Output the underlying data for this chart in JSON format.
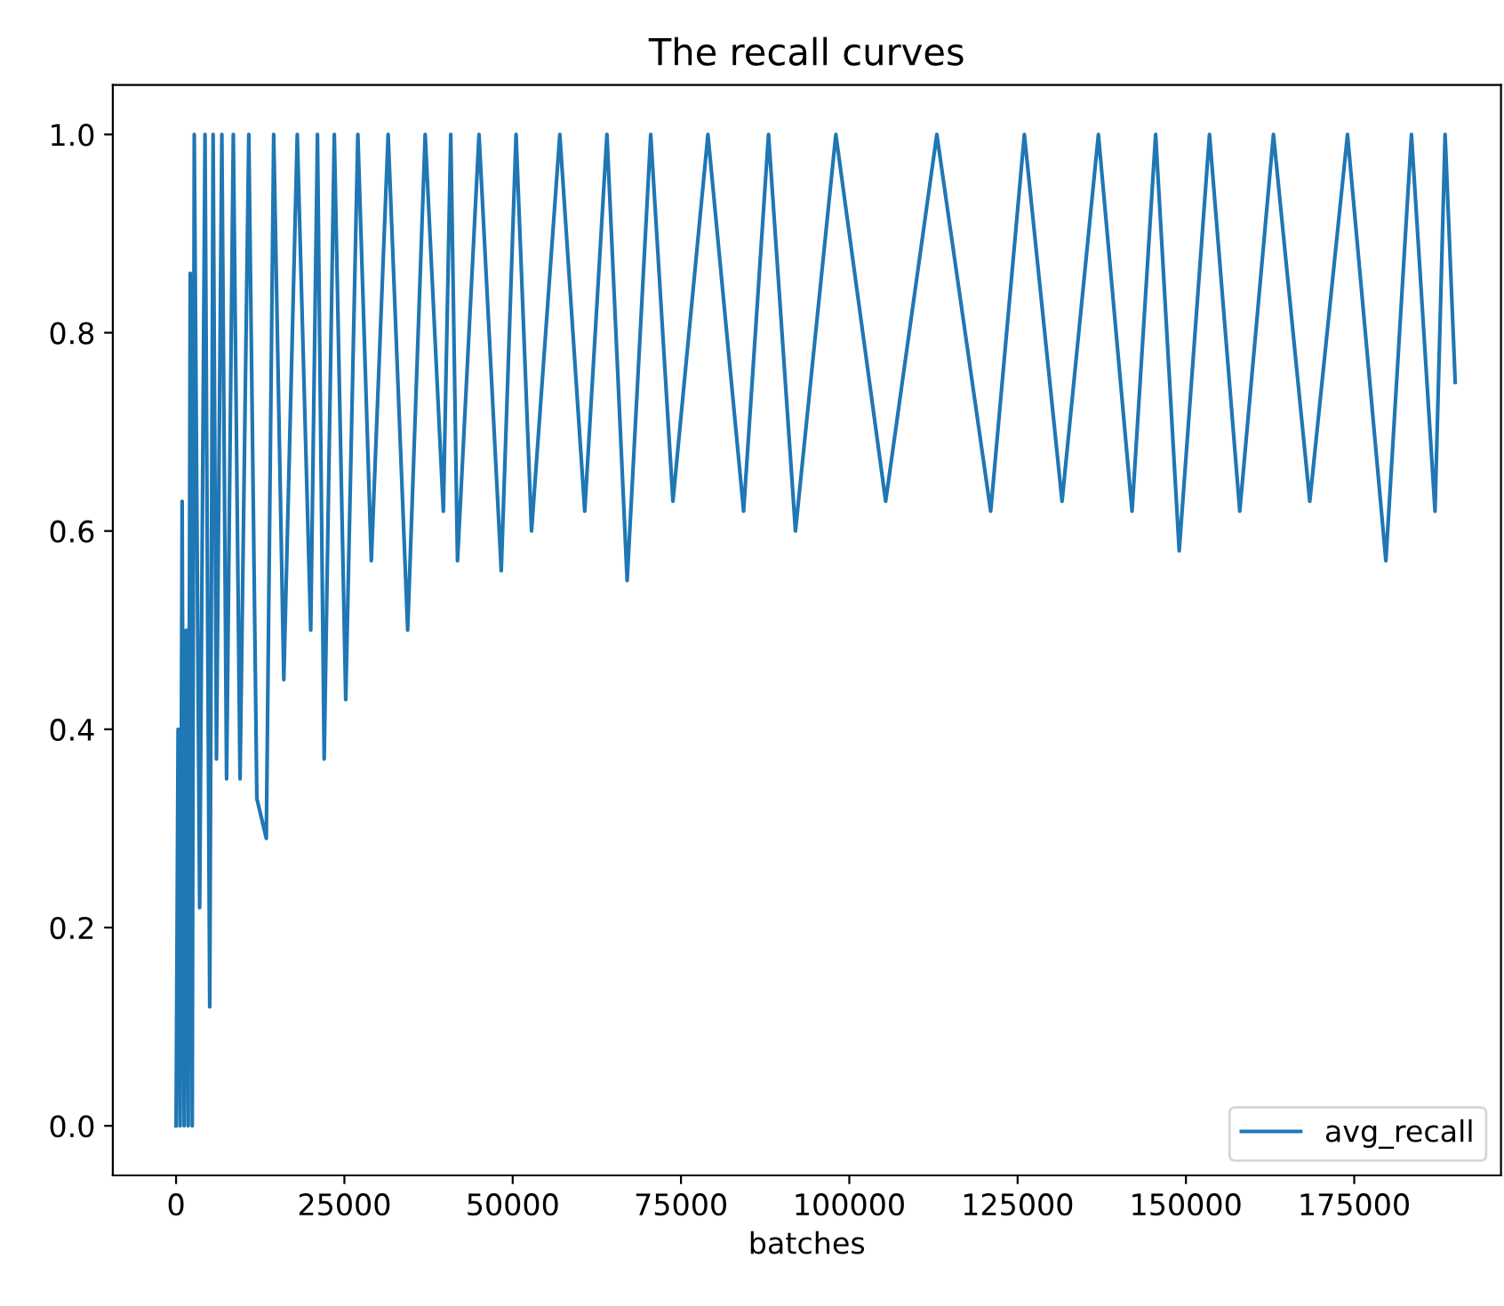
{
  "chart_data": {
    "type": "line",
    "title": "The recall curves",
    "xlabel": "batches",
    "xlim": [
      -9400,
      196800
    ],
    "ylim": [
      -0.05,
      1.05
    ],
    "xticks": [
      0,
      25000,
      50000,
      75000,
      100000,
      125000,
      150000,
      175000
    ],
    "yticks": [
      {
        "value": 0,
        "label": "0.0"
      },
      0.2,
      0.4,
      0.6,
      0.8,
      {
        "value": 1,
        "label": "1.0"
      }
    ],
    "grid": false,
    "legend": "bottom right",
    "marker": "none",
    "line_style": "solid",
    "series": [
      {
        "name": "avg_recall",
        "color": "#1f77b4",
        "x": [
          0,
          300,
          600,
          900,
          1200,
          1500,
          1800,
          2100,
          2400,
          2700,
          3500,
          4300,
          5000,
          5500,
          6000,
          6800,
          7500,
          8500,
          9500,
          10800,
          12000,
          13400,
          14500,
          16000,
          18000,
          20000,
          21000,
          22000,
          23500,
          25200,
          27000,
          29000,
          31500,
          34400,
          37000,
          39700,
          40800,
          41800,
          45000,
          48300,
          50500,
          52800,
          57000,
          60700,
          64000,
          67000,
          70500,
          73800,
          79000,
          84300,
          88000,
          92000,
          98000,
          105400,
          113000,
          121000,
          126000,
          131600,
          137000,
          142000,
          145500,
          149000,
          153500,
          158000,
          163000,
          168400,
          174000,
          179700,
          183500,
          187000,
          188500,
          190000
        ],
        "values": [
          0,
          0.4,
          0,
          0.63,
          0,
          0.5,
          0,
          0.86,
          0,
          1.0,
          0.22,
          1.0,
          0.12,
          1.0,
          0.37,
          1.0,
          0.35,
          1.0,
          0.35,
          1.0,
          0.33,
          0.29,
          1.0,
          0.45,
          1.0,
          0.5,
          1.0,
          0.37,
          1.0,
          0.43,
          1.0,
          0.57,
          1.0,
          0.5,
          1.0,
          0.62,
          1.0,
          0.57,
          1.0,
          0.56,
          1.0,
          0.6,
          1.0,
          0.62,
          1.0,
          0.55,
          1.0,
          0.63,
          1.0,
          0.62,
          1.0,
          0.6,
          1.0,
          0.63,
          1.0,
          0.62,
          1.0,
          0.63,
          1.0,
          0.62,
          1.0,
          0.58,
          1.0,
          0.62,
          1.0,
          0.63,
          1.0,
          0.57,
          1.0,
          0.62,
          1.0,
          0.75
        ]
      }
    ]
  }
}
